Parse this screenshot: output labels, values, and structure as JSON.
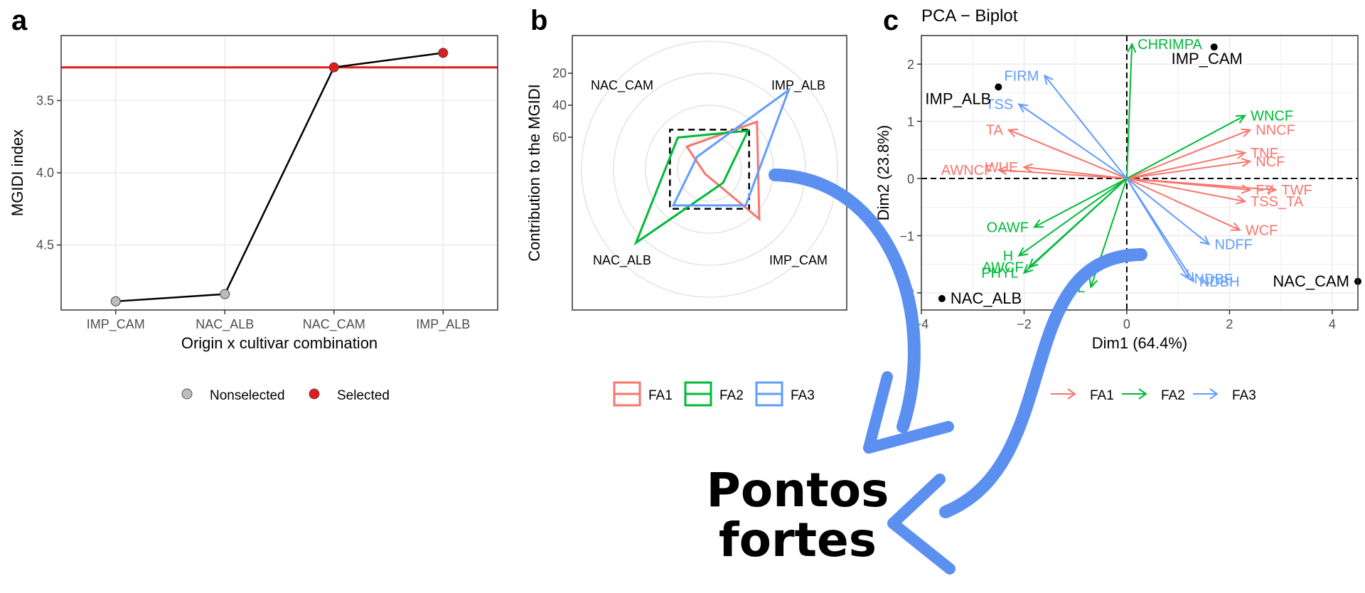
{
  "panel_letters": [
    "a",
    "b",
    "c"
  ],
  "colors": {
    "selected": "#e41a1c",
    "nonselected": "#bdbdbd",
    "fa1": "#f8766d",
    "fa2": "#00ba38",
    "fa3": "#619cff",
    "arrow_callout": "#5b8ff0"
  },
  "callout": {
    "line1": "Pontos",
    "line2": "fortes"
  },
  "chart_data": [
    {
      "panel": "a",
      "type": "line",
      "xlabel": "Origin x cultivar combination",
      "ylabel": "MGIDI index",
      "categories": [
        "IMP_CAM",
        "NAC_ALB",
        "NAC_CAM",
        "IMP_ALB"
      ],
      "values": [
        4.89,
        4.84,
        3.27,
        3.17
      ],
      "selected": [
        false,
        false,
        true,
        true
      ],
      "cutpoint": 3.27,
      "y_reversed": true,
      "ylim": [
        3.05,
        4.95
      ],
      "yticks": [
        3.5,
        4.0,
        4.5
      ],
      "ytick_labels": [
        "3.5",
        "4.0",
        "4.5"
      ],
      "legend": {
        "position": "bottom",
        "items": [
          "Nonselected",
          "Selected"
        ]
      },
      "grid": true
    },
    {
      "panel": "b",
      "type": "radar",
      "ylabel": "Contribution to the MGIDI",
      "axes": [
        "IMP_ALB",
        "IMP_CAM",
        "NAC_ALB",
        "NAC_CAM"
      ],
      "radial_ticks": [
        20,
        40,
        60
      ],
      "radial_tick_labels": [
        "20",
        "40",
        "60"
      ],
      "radial_reversed": true,
      "radial_range": [
        0,
        80
      ],
      "series": [
        {
          "name": "FA1",
          "values": [
            38,
            36,
            76,
            60
          ]
        },
        {
          "name": "FA2",
          "values": [
            46,
            68,
            15,
            52
          ]
        },
        {
          "name": "FA3",
          "values": [
            10,
            48,
            48,
            69
          ]
        }
      ],
      "reference_square": 45,
      "legend": {
        "position": "bottom",
        "items": [
          "FA1",
          "FA2",
          "FA3"
        ]
      }
    },
    {
      "panel": "c",
      "type": "scatter",
      "title": "PCA − Biplot",
      "xlabel": "Dim1 (64.4%)",
      "ylabel": "Dim2 (23.8%)",
      "xlim": [
        -4.0,
        4.5
      ],
      "ylim": [
        -2.3,
        2.5
      ],
      "xticks": [
        -4,
        -2,
        0,
        2,
        4
      ],
      "xtick_labels": [
        "−4",
        "−2",
        "0",
        "2",
        "4"
      ],
      "yticks": [
        -2,
        -1,
        0,
        1,
        2
      ],
      "ytick_labels": [
        "−2",
        "−1",
        "0",
        "1",
        "2"
      ],
      "points": [
        {
          "label": "IMP_CAM",
          "x": 1.7,
          "y": 2.3
        },
        {
          "label": "IMP_ALB",
          "x": -2.5,
          "y": 1.6
        },
        {
          "label": "NAC_CAM",
          "x": 4.5,
          "y": -1.8
        },
        {
          "label": "NAC_ALB",
          "x": -3.6,
          "y": -2.1
        }
      ],
      "series": [
        {
          "name": "FA1",
          "vectors": [
            {
              "label": "NNCF",
              "x": 2.4,
              "y": 0.85
            },
            {
              "label": "TNF",
              "x": 2.3,
              "y": 0.45
            },
            {
              "label": "NCF",
              "x": 2.4,
              "y": 0.3
            },
            {
              "label": "FY",
              "x": 2.4,
              "y": -0.2
            },
            {
              "label": "TWF",
              "x": 2.9,
              "y": -0.2
            },
            {
              "label": "TSS_TA",
              "x": 2.3,
              "y": -0.4
            },
            {
              "label": "WCF",
              "x": 2.2,
              "y": -0.9
            },
            {
              "label": "TA",
              "x": -2.3,
              "y": 0.85
            },
            {
              "label": "WUE",
              "x": -2.0,
              "y": 0.2
            },
            {
              "label": "AWNCF",
              "x": -2.5,
              "y": 0.15
            }
          ]
        },
        {
          "name": "FA2",
          "vectors": [
            {
              "label": "CHRIMPA",
              "x": 0.1,
              "y": 2.35
            },
            {
              "label": "WNCF",
              "x": 2.3,
              "y": 1.1
            },
            {
              "label": "OAWF",
              "x": -1.8,
              "y": -0.85
            },
            {
              "label": "H",
              "x": -2.1,
              "y": -1.35
            },
            {
              "label": "AWCF",
              "x": -1.9,
              "y": -1.55
            },
            {
              "label": "PHYL",
              "x": -2.0,
              "y": -1.65
            },
            {
              "label": "L",
              "x": -0.7,
              "y": -1.9
            }
          ]
        },
        {
          "name": "FA3",
          "vectors": [
            {
              "label": "FIRM",
              "x": -1.6,
              "y": 1.8
            },
            {
              "label": "TSS",
              "x": -2.1,
              "y": 1.3
            },
            {
              "label": "NDFF",
              "x": 1.6,
              "y": -1.15
            },
            {
              "label": "NDBF",
              "x": 1.2,
              "y": -1.75
            },
            {
              "label": "NDBH",
              "x": 1.3,
              "y": -1.8
            }
          ]
        }
      ],
      "legend": {
        "position": "bottom",
        "items": [
          "FA1",
          "FA2",
          "FA3"
        ]
      },
      "grid": true
    }
  ]
}
